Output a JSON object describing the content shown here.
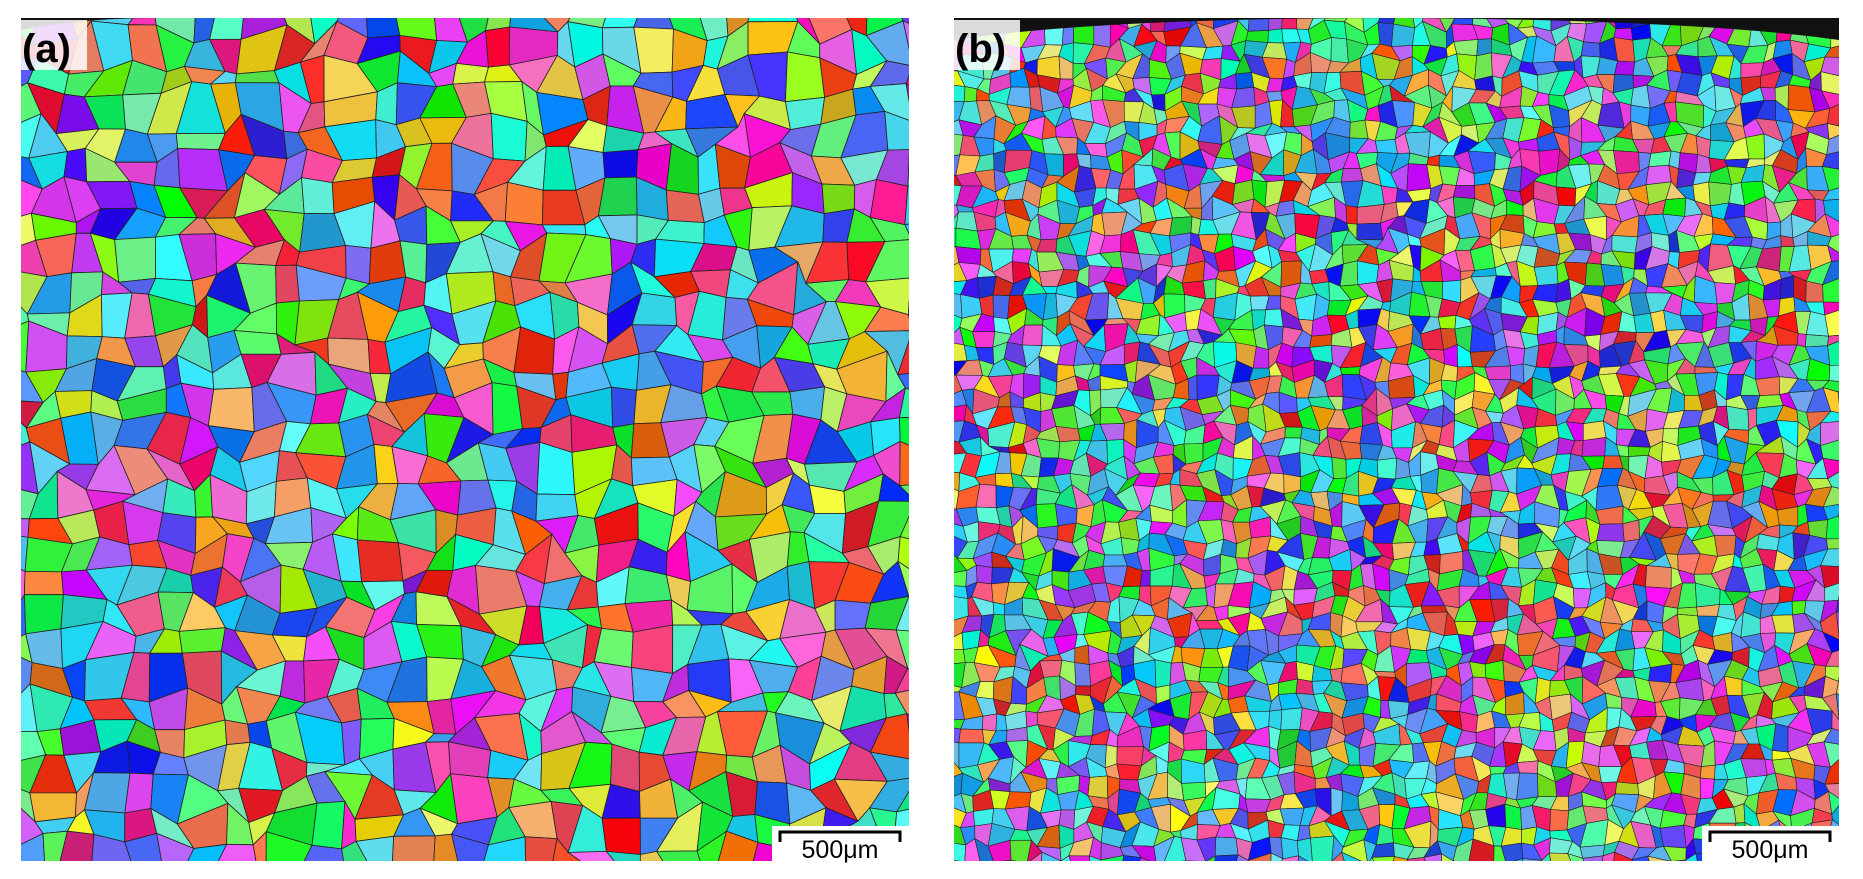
{
  "panels": [
    {
      "label": "(a)",
      "scale_bar": "500μm"
    },
    {
      "label": "(b)",
      "scale_bar": "500μm"
    }
  ]
}
